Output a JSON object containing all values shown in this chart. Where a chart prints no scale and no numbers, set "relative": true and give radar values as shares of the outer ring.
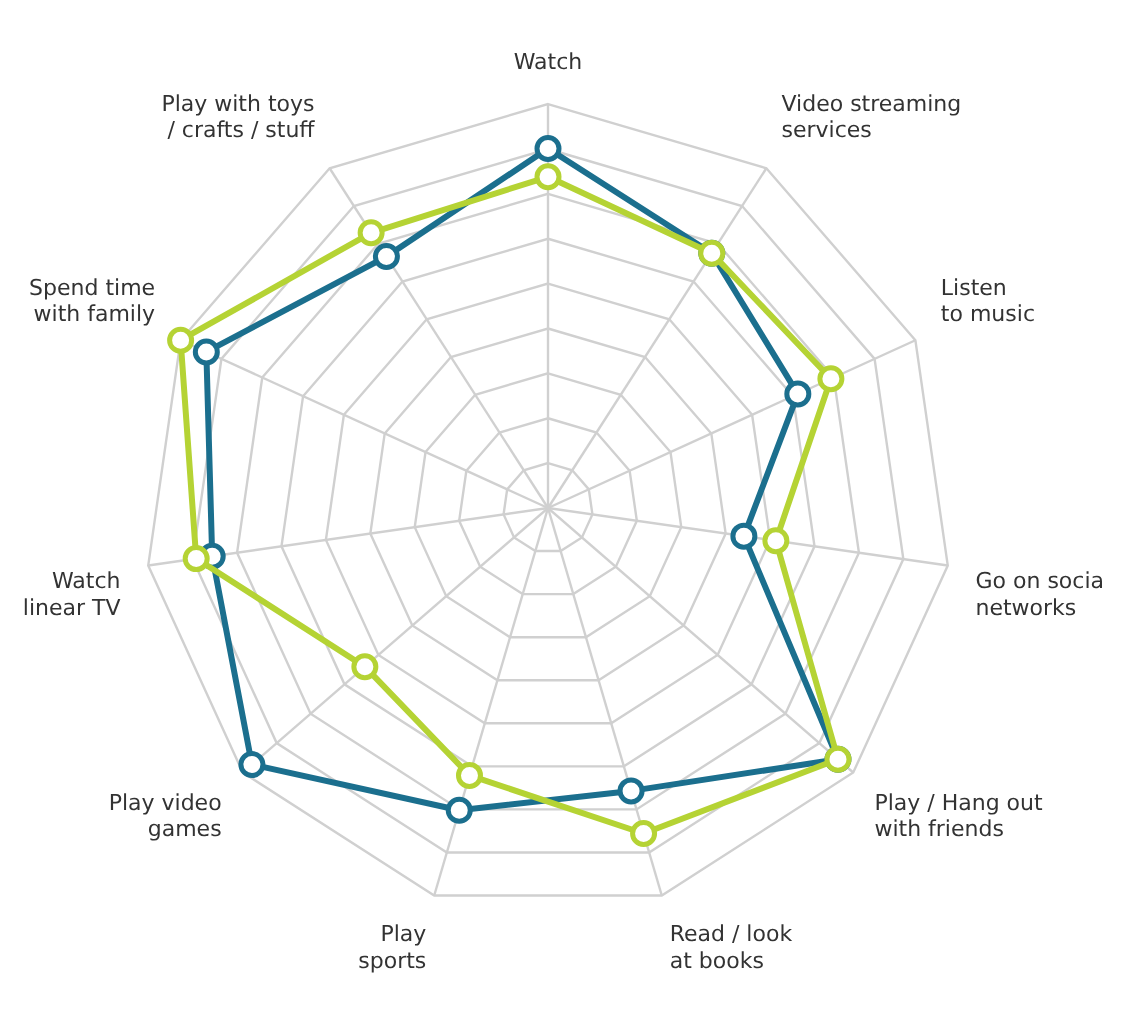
{
  "chart_data": {
    "type": "radar",
    "relative": true,
    "grid": true,
    "legend": false,
    "marker": "circle",
    "line_style": "solid",
    "categories": [
      "Watch",
      "Video streaming services",
      "Listen to music",
      "Go on socia networks",
      "Play / Hang out with friends",
      "Read / look at books",
      "Play sports",
      "Play video games",
      "Watch linear TV",
      "Spend time with family",
      "Play with toys / crafts / stuff"
    ],
    "series": [
      {
        "color": "#b5d334",
        "values": [
          0.82,
          0.75,
          0.77,
          0.57,
          0.95,
          0.84,
          0.69,
          0.6,
          0.88,
          1.0,
          0.81
        ]
      },
      {
        "color": "#1b6f8e",
        "values": [
          0.89,
          0.75,
          0.68,
          0.49,
          0.95,
          0.73,
          0.78,
          0.97,
          0.84,
          0.93,
          0.74
        ]
      }
    ]
  }
}
